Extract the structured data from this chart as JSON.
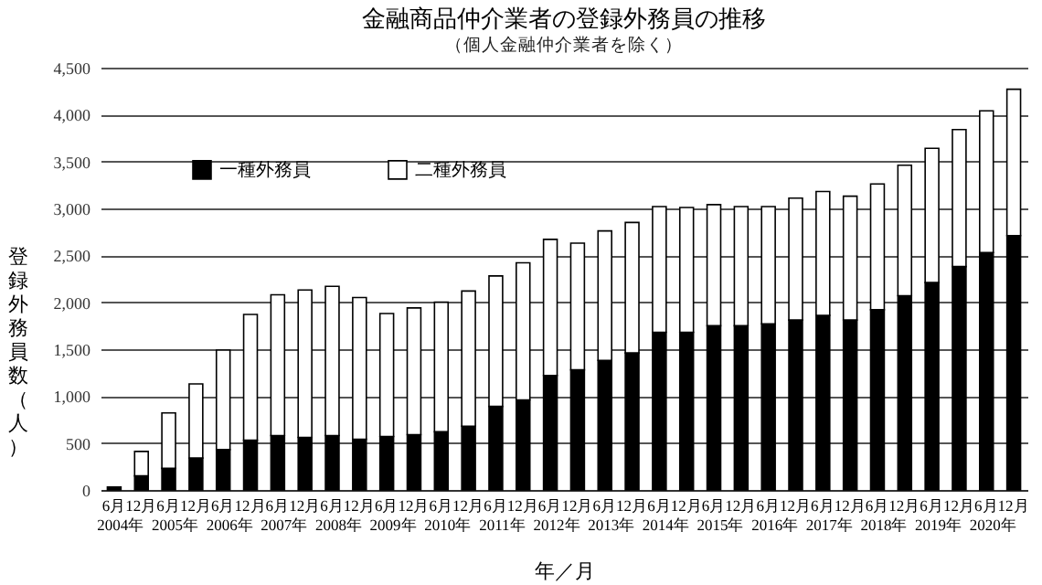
{
  "chart_data": {
    "type": "bar",
    "title": "金融商品仲介業者の登録外務員の推移",
    "subtitle": "（個人金融仲介業者を除く）",
    "xlabel": "年／月",
    "ylabel": "登録外務員数（人）",
    "categories": [
      "6月",
      "12月",
      "6月",
      "12月",
      "6月",
      "12月",
      "6月",
      "12月",
      "6月",
      "12月",
      "6月",
      "12月",
      "6月",
      "12月",
      "6月",
      "12月",
      "6月",
      "12月",
      "6月",
      "12月",
      "6月",
      "12月",
      "6月",
      "12月",
      "6月",
      "12月",
      "6月",
      "12月",
      "6月",
      "12月",
      "6月",
      "12月",
      "6月",
      "12月"
    ],
    "series": [
      {
        "name": "一種外務員",
        "color": "#000000",
        "values": [
          30,
          150,
          230,
          340,
          430,
          530,
          580,
          560,
          580,
          540,
          570,
          590,
          620,
          680,
          890,
          960,
          1220,
          1280,
          1380,
          1460,
          1680,
          1680,
          1750,
          1750,
          1770,
          1810,
          1860,
          1810,
          1920,
          2070,
          2210,
          2380,
          2530,
          2710
        ]
      },
      {
        "name": "二種外務員",
        "color": "#ffffff",
        "values": [
          null,
          260,
          590,
          790,
          1060,
          1340,
          1500,
          1570,
          1590,
          1510,
          1310,
          1350,
          1380,
          1440,
          1390,
          1460,
          1450,
          1350,
          1380,
          1390,
          1340,
          1330,
          1290,
          1270,
          1250,
          1300,
          1320,
          1320,
          1340,
          1390,
          1430,
          1460,
          1510,
          1560
        ]
      }
    ],
    "stacked": true,
    "ylim": [
      0,
      4500
    ],
    "yticks": [
      0,
      500,
      {
        "value": 1000,
        "label": "1,000"
      },
      {
        "value": 1500,
        "label": "1,500"
      },
      {
        "value": 2000,
        "label": "2,000"
      },
      {
        "value": 2500,
        "label": "2,500"
      },
      {
        "value": 3000,
        "label": "3,000"
      },
      {
        "value": 3500,
        "label": "3,500"
      },
      {
        "value": 4000,
        "label": "4,000"
      },
      {
        "value": 4500,
        "label": "4,500"
      }
    ],
    "grid": "y",
    "legend": "top left",
    "annotations": [
      "2004年",
      "2005年",
      "2006年",
      "2007年",
      "2008年",
      "2009年",
      "2010年",
      "2011年",
      "2012年",
      "2013年",
      "2014年",
      "2015年",
      "2016年",
      "2017年",
      "2018年",
      "2019年",
      "2020年"
    ]
  }
}
